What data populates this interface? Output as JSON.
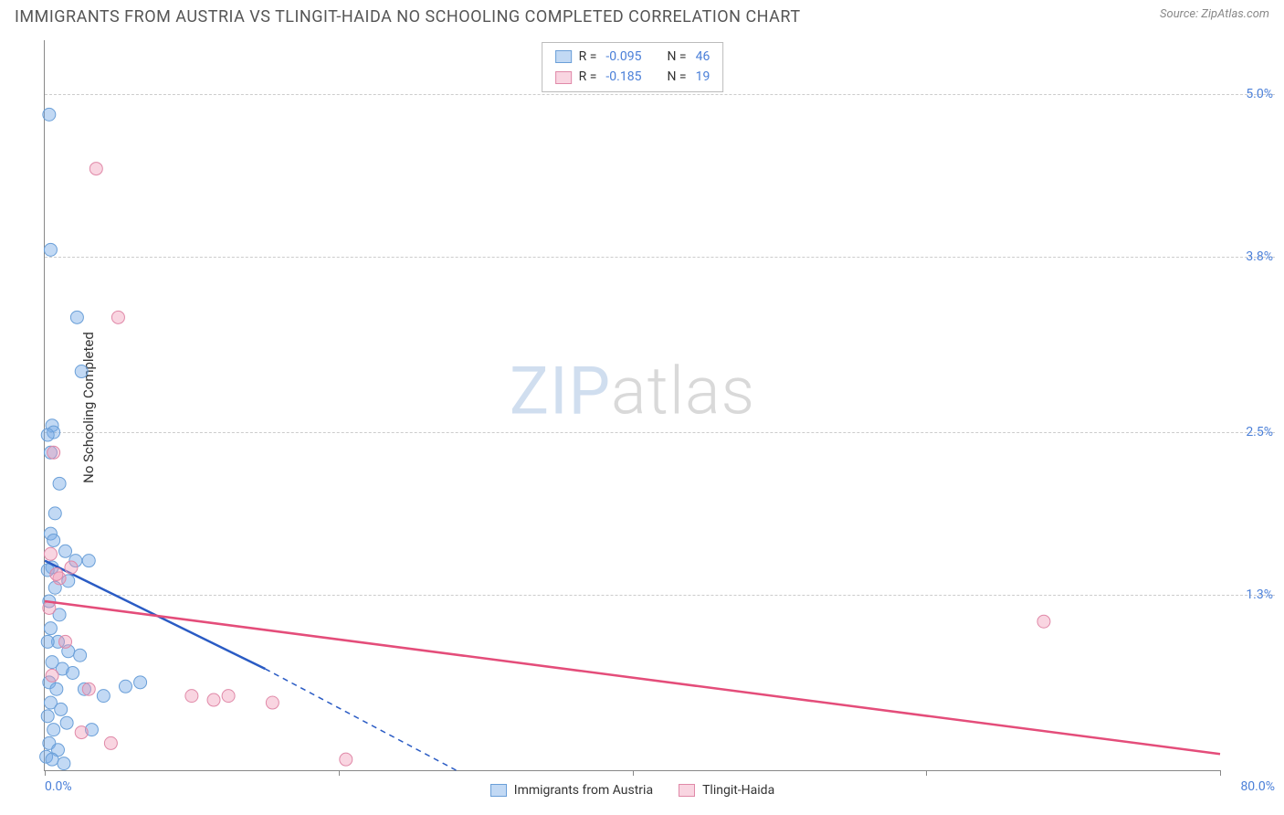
{
  "header": {
    "title": "IMMIGRANTS FROM AUSTRIA VS TLINGIT-HAIDA NO SCHOOLING COMPLETED CORRELATION CHART",
    "source": "Source: ZipAtlas.com"
  },
  "ylabel": "No Schooling Completed",
  "watermark": {
    "part1": "ZIP",
    "part2": "atlas"
  },
  "colors": {
    "series_a_fill": "rgba(120,170,230,0.45)",
    "series_a_stroke": "#6a9fd8",
    "series_a_line": "#2a5bc4",
    "series_b_fill": "rgba(240,150,180,0.40)",
    "series_b_stroke": "#e089a8",
    "series_b_line": "#e44d7a",
    "tick_label": "#4a7fd8",
    "grid": "#cccccc",
    "border": "#888888"
  },
  "chart": {
    "type": "scatter",
    "xlim": [
      0,
      80
    ],
    "ylim": [
      0,
      5.4
    ],
    "x_ticks": [
      0,
      20,
      40,
      60,
      80
    ],
    "x_tick_labels": {
      "start": "0.0%",
      "end": "80.0%"
    },
    "y_gridlines": [
      1.3,
      2.5,
      3.8,
      5.0
    ],
    "y_tick_labels": [
      "1.3%",
      "2.5%",
      "3.8%",
      "5.0%"
    ],
    "marker_radius": 7,
    "line_width": 2.5,
    "series": [
      {
        "key": "a",
        "name": "Immigrants from Austria",
        "R": "-0.095",
        "N": "46",
        "trend": {
          "x1": 0,
          "y1": 1.55,
          "x2_solid": 15,
          "y2_solid": 0.75,
          "x2_dash": 28,
          "y2_dash": 0.0
        },
        "points": [
          [
            0.3,
            4.85
          ],
          [
            0.4,
            3.85
          ],
          [
            2.2,
            3.35
          ],
          [
            2.5,
            2.95
          ],
          [
            0.5,
            2.55
          ],
          [
            0.6,
            2.5
          ],
          [
            0.2,
            2.48
          ],
          [
            0.4,
            2.35
          ],
          [
            1.0,
            2.12
          ],
          [
            0.4,
            1.75
          ],
          [
            0.6,
            1.7
          ],
          [
            1.4,
            1.62
          ],
          [
            2.1,
            1.55
          ],
          [
            3.0,
            1.55
          ],
          [
            0.5,
            1.5
          ],
          [
            0.2,
            1.48
          ],
          [
            1.6,
            1.4
          ],
          [
            0.7,
            1.35
          ],
          [
            0.3,
            1.25
          ],
          [
            1.0,
            1.15
          ],
          [
            0.4,
            1.05
          ],
          [
            0.9,
            0.95
          ],
          [
            1.6,
            0.88
          ],
          [
            2.4,
            0.85
          ],
          [
            0.5,
            0.8
          ],
          [
            1.2,
            0.75
          ],
          [
            1.9,
            0.72
          ],
          [
            0.3,
            0.65
          ],
          [
            0.8,
            0.6
          ],
          [
            2.7,
            0.6
          ],
          [
            5.5,
            0.62
          ],
          [
            0.4,
            0.5
          ],
          [
            1.1,
            0.45
          ],
          [
            0.2,
            0.4
          ],
          [
            1.5,
            0.35
          ],
          [
            0.6,
            0.3
          ],
          [
            3.2,
            0.3
          ],
          [
            0.3,
            0.2
          ],
          [
            0.9,
            0.15
          ],
          [
            0.1,
            0.1
          ],
          [
            0.5,
            0.08
          ],
          [
            1.3,
            0.05
          ],
          [
            6.5,
            0.65
          ],
          [
            4.0,
            0.55
          ],
          [
            0.7,
            1.9
          ],
          [
            0.2,
            0.95
          ]
        ]
      },
      {
        "key": "b",
        "name": "Tlingit-Haida",
        "R": "-0.185",
        "N": "19",
        "trend": {
          "x1": 0,
          "y1": 1.25,
          "x2_solid": 80,
          "y2_solid": 0.12
        },
        "points": [
          [
            3.5,
            4.45
          ],
          [
            5.0,
            3.35
          ],
          [
            0.6,
            2.35
          ],
          [
            0.4,
            1.6
          ],
          [
            1.0,
            1.42
          ],
          [
            0.8,
            1.45
          ],
          [
            68.0,
            1.1
          ],
          [
            1.4,
            0.95
          ],
          [
            0.5,
            0.7
          ],
          [
            3.0,
            0.6
          ],
          [
            10.0,
            0.55
          ],
          [
            11.5,
            0.52
          ],
          [
            12.5,
            0.55
          ],
          [
            15.5,
            0.5
          ],
          [
            2.5,
            0.28
          ],
          [
            4.5,
            0.2
          ],
          [
            20.5,
            0.08
          ],
          [
            0.3,
            1.2
          ],
          [
            1.8,
            1.5
          ]
        ]
      }
    ]
  },
  "legend_top": {
    "labels": {
      "R": "R =",
      "N": "N ="
    }
  },
  "legend_bottom": {
    "series_a": "Immigrants from Austria",
    "series_b": "Tlingit-Haida"
  }
}
